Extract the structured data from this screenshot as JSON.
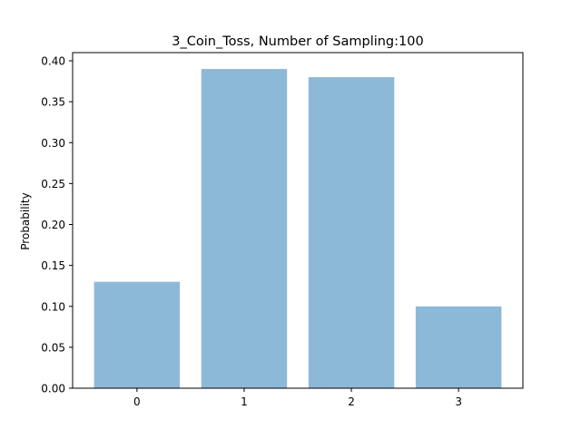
{
  "chart_data": {
    "type": "bar",
    "title": "3_Coin_Toss, Number of Sampling:100",
    "xlabel": "",
    "ylabel": "Probability",
    "categories": [
      "0",
      "1",
      "2",
      "3"
    ],
    "values": [
      0.13,
      0.39,
      0.38,
      0.1
    ],
    "ylim": [
      0,
      0.4
    ],
    "yticks": [
      "0.00",
      "0.05",
      "0.10",
      "0.15",
      "0.20",
      "0.25",
      "0.30",
      "0.35",
      "0.40"
    ],
    "grid": false,
    "bar_color": "#8DB9D9"
  }
}
